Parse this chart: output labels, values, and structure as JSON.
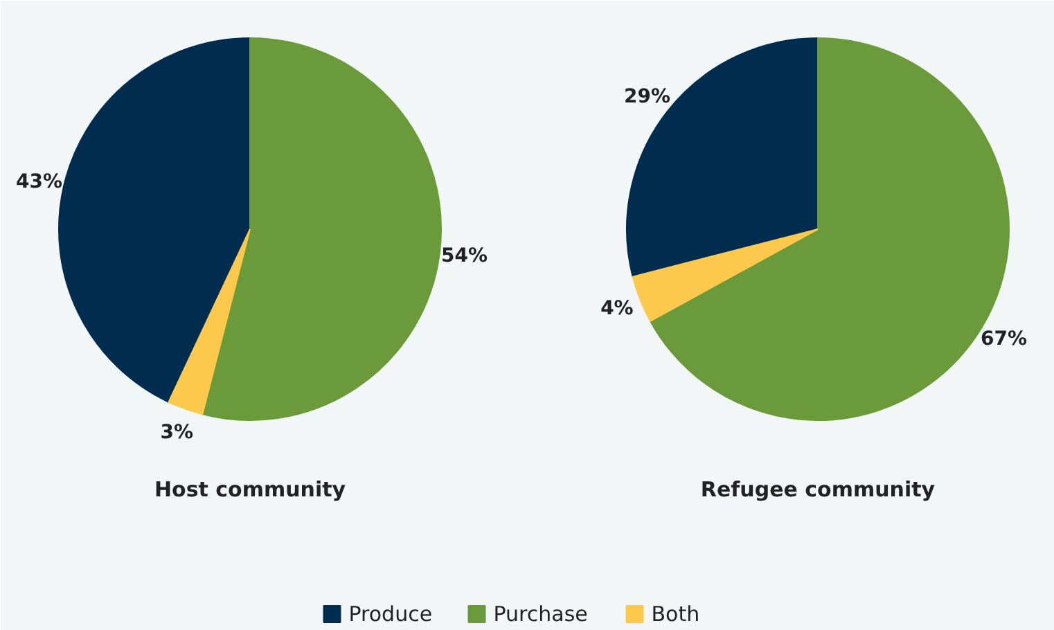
{
  "chart_data": [
    {
      "type": "pie",
      "title": "Host community",
      "categories": [
        "Produce",
        "Purchase",
        "Both"
      ],
      "values": [
        43,
        54,
        3
      ],
      "colors": [
        "#002d4f",
        "#6a9a3a",
        "#fdc94d"
      ],
      "value_labels": [
        "43%",
        "54%",
        "3%"
      ],
      "legend": "bottom"
    },
    {
      "type": "pie",
      "title": "Refugee community",
      "categories": [
        null,
        null,
        null
      ],
      "values": [
        29,
        67,
        4
      ],
      "colors": [
        "#002d4f",
        "#6a9a3a",
        "#fdc94d"
      ],
      "value_labels": [
        "29%",
        "67%",
        "4%"
      ]
    }
  ]
}
